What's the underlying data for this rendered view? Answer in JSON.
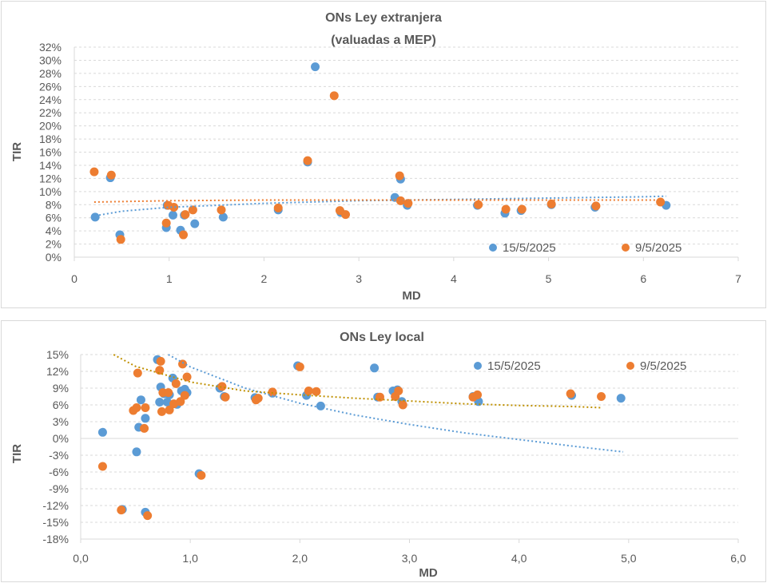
{
  "colors": {
    "series1": "#5b9bd5",
    "series2": "#ed7d31",
    "trend2_chart2": "#bf9000",
    "grid": "#d9d9d9",
    "text": "#595959"
  },
  "chart_data": [
    {
      "type": "scatter",
      "title": "ONs Ley extranjera",
      "subtitle": "(valuadas a MEP)",
      "xlabel": "MD",
      "ylabel": "TIR",
      "xlim": [
        0,
        7
      ],
      "ylim": [
        0,
        0.32
      ],
      "x_ticks": [
        0,
        1,
        2,
        3,
        4,
        5,
        6,
        7
      ],
      "x_tick_labels": [
        "0",
        "1",
        "2",
        "3",
        "4",
        "5",
        "6",
        "7"
      ],
      "y_ticks": [
        0,
        0.02,
        0.04,
        0.06,
        0.08,
        0.1,
        0.12,
        0.14,
        0.16,
        0.18,
        0.2,
        0.22,
        0.24,
        0.26,
        0.28,
        0.3,
        0.32
      ],
      "y_tick_labels": [
        "0%",
        "2%",
        "4%",
        "6%",
        "8%",
        "10%",
        "12%",
        "14%",
        "16%",
        "18%",
        "20%",
        "22%",
        "24%",
        "26%",
        "28%",
        "30%",
        "32%"
      ],
      "grid": "horizontal",
      "legend_placement": "bottom-right",
      "series": [
        {
          "name": "15/5/2025",
          "points": [
            [
              0.22,
              0.061
            ],
            [
              0.38,
              0.121
            ],
            [
              0.48,
              0.034
            ],
            [
              0.97,
              0.045
            ],
            [
              0.98,
              0.079
            ],
            [
              1.04,
              0.064
            ],
            [
              1.12,
              0.041
            ],
            [
              1.16,
              0.064
            ],
            [
              1.27,
              0.051
            ],
            [
              1.57,
              0.061
            ],
            [
              2.15,
              0.072
            ],
            [
              2.46,
              0.145
            ],
            [
              2.54,
              0.29
            ],
            [
              2.81,
              0.068
            ],
            [
              3.38,
              0.091
            ],
            [
              3.44,
              0.119
            ],
            [
              3.51,
              0.079
            ],
            [
              4.25,
              0.079
            ],
            [
              4.54,
              0.067
            ],
            [
              4.71,
              0.071
            ],
            [
              5.03,
              0.08
            ],
            [
              5.49,
              0.076
            ],
            [
              6.24,
              0.079
            ]
          ],
          "trendline": {
            "kind": "logarithmic",
            "points": [
              [
                0.22,
                0.063
              ],
              [
                0.5,
                0.07
              ],
              [
                1.0,
                0.076
              ],
              [
                1.5,
                0.079
              ],
              [
                2.0,
                0.082
              ],
              [
                3.0,
                0.086
              ],
              [
                4.0,
                0.088
              ],
              [
                5.0,
                0.09
              ],
              [
                6.0,
                0.092
              ],
              [
                6.24,
                0.093
              ]
            ]
          }
        },
        {
          "name": "9/5/2025",
          "points": [
            [
              0.21,
              0.13
            ],
            [
              0.39,
              0.125
            ],
            [
              0.49,
              0.027
            ],
            [
              0.97,
              0.052
            ],
            [
              0.99,
              0.079
            ],
            [
              1.05,
              0.076
            ],
            [
              1.15,
              0.034
            ],
            [
              1.17,
              0.065
            ],
            [
              1.25,
              0.072
            ],
            [
              1.55,
              0.072
            ],
            [
              2.15,
              0.075
            ],
            [
              2.46,
              0.147
            ],
            [
              2.74,
              0.246
            ],
            [
              2.8,
              0.071
            ],
            [
              2.86,
              0.065
            ],
            [
              3.43,
              0.124
            ],
            [
              3.44,
              0.086
            ],
            [
              3.52,
              0.082
            ],
            [
              4.26,
              0.08
            ],
            [
              4.55,
              0.073
            ],
            [
              4.72,
              0.073
            ],
            [
              5.03,
              0.081
            ],
            [
              5.5,
              0.078
            ],
            [
              6.18,
              0.084
            ]
          ],
          "trendline": {
            "kind": "logarithmic",
            "points": [
              [
                0.21,
                0.084
              ],
              [
                1.0,
                0.086
              ],
              [
                2.0,
                0.087
              ],
              [
                3.0,
                0.087
              ],
              [
                4.0,
                0.087
              ],
              [
                5.0,
                0.087
              ],
              [
                6.18,
                0.087
              ]
            ]
          }
        }
      ]
    },
    {
      "type": "scatter",
      "title": "ONs Ley local",
      "xlabel": "MD",
      "ylabel": "TIR",
      "xlim": [
        0,
        6
      ],
      "ylim": [
        -0.18,
        0.15
      ],
      "x_ticks": [
        0,
        1,
        2,
        3,
        4,
        5,
        6
      ],
      "x_tick_labels": [
        "0,0",
        "1,0",
        "2,0",
        "3,0",
        "4,0",
        "5,0",
        "6,0"
      ],
      "y_ticks": [
        -0.18,
        -0.15,
        -0.12,
        -0.09,
        -0.06,
        -0.03,
        0,
        0.03,
        0.06,
        0.09,
        0.12,
        0.15
      ],
      "y_tick_labels": [
        "-18%",
        "-15%",
        "-12%",
        "-9%",
        "-6%",
        "-3%",
        "0%",
        "3%",
        "6%",
        "9%",
        "12%",
        "15%"
      ],
      "grid": "horizontal",
      "legend_placement": "top-right",
      "series": [
        {
          "name": "15/5/2025",
          "points": [
            [
              0.2,
              0.011
            ],
            [
              0.38,
              -0.127
            ],
            [
              0.51,
              -0.024
            ],
            [
              0.53,
              0.02
            ],
            [
              0.55,
              0.069
            ],
            [
              0.59,
              0.036
            ],
            [
              0.59,
              -0.132
            ],
            [
              0.7,
              0.141
            ],
            [
              0.72,
              0.065
            ],
            [
              0.73,
              0.092
            ],
            [
              0.76,
              0.08
            ],
            [
              0.79,
              0.065
            ],
            [
              0.81,
              0.078
            ],
            [
              0.84,
              0.108
            ],
            [
              0.88,
              0.061
            ],
            [
              0.92,
              0.085
            ],
            [
              0.95,
              0.088
            ],
            [
              0.97,
              0.082
            ],
            [
              1.08,
              -0.063
            ],
            [
              1.27,
              0.09
            ],
            [
              1.31,
              0.075
            ],
            [
              1.59,
              0.073
            ],
            [
              1.75,
              0.081
            ],
            [
              1.98,
              0.13
            ],
            [
              2.06,
              0.077
            ],
            [
              2.19,
              0.058
            ],
            [
              2.68,
              0.126
            ],
            [
              2.71,
              0.074
            ],
            [
              2.85,
              0.085
            ],
            [
              2.89,
              0.087
            ],
            [
              2.93,
              0.066
            ],
            [
              3.58,
              0.075
            ],
            [
              3.63,
              0.066
            ],
            [
              4.48,
              0.077
            ],
            [
              4.93,
              0.072
            ]
          ],
          "trendline": {
            "kind": "logarithmic",
            "points": [
              [
                0.8,
                0.15
              ],
              [
                1.0,
                0.128
              ],
              [
                1.5,
                0.09
              ],
              [
                2.0,
                0.063
              ],
              [
                2.5,
                0.042
              ],
              [
                3.0,
                0.025
              ],
              [
                3.5,
                0.01
              ],
              [
                4.0,
                -0.002
              ],
              [
                4.5,
                -0.014
              ],
              [
                4.95,
                -0.024
              ]
            ]
          }
        },
        {
          "name": "9/5/2025",
          "points": [
            [
              0.2,
              -0.05
            ],
            [
              0.37,
              -0.128
            ],
            [
              0.48,
              0.05
            ],
            [
              0.51,
              0.055
            ],
            [
              0.52,
              0.117
            ],
            [
              0.58,
              0.018
            ],
            [
              0.59,
              0.055
            ],
            [
              0.61,
              -0.138
            ],
            [
              0.72,
              0.122
            ],
            [
              0.73,
              0.138
            ],
            [
              0.74,
              0.048
            ],
            [
              0.75,
              0.082
            ],
            [
              0.8,
              0.082
            ],
            [
              0.81,
              0.051
            ],
            [
              0.85,
              0.062
            ],
            [
              0.87,
              0.098
            ],
            [
              0.91,
              0.066
            ],
            [
              0.93,
              0.133
            ],
            [
              0.95,
              0.077
            ],
            [
              0.97,
              0.11
            ],
            [
              1.1,
              -0.066
            ],
            [
              1.29,
              0.093
            ],
            [
              1.32,
              0.074
            ],
            [
              1.6,
              0.069
            ],
            [
              1.62,
              0.072
            ],
            [
              1.75,
              0.083
            ],
            [
              2.0,
              0.128
            ],
            [
              2.08,
              0.085
            ],
            [
              2.15,
              0.084
            ],
            [
              2.73,
              0.074
            ],
            [
              2.87,
              0.075
            ],
            [
              2.9,
              0.085
            ],
            [
              2.94,
              0.06
            ],
            [
              3.58,
              0.074
            ],
            [
              3.62,
              0.078
            ],
            [
              4.47,
              0.08
            ],
            [
              4.75,
              0.075
            ]
          ],
          "trendline": {
            "kind": "logarithmic",
            "points": [
              [
                0.3,
                0.15
              ],
              [
                0.5,
                0.129
              ],
              [
                1.0,
                0.101
              ],
              [
                1.5,
                0.085
              ],
              [
                2.0,
                0.078
              ],
              [
                2.5,
                0.072
              ],
              [
                3.0,
                0.067
              ],
              [
                3.5,
                0.062
              ],
              [
                4.0,
                0.059
              ],
              [
                4.5,
                0.057
              ],
              [
                4.75,
                0.055
              ]
            ]
          }
        }
      ]
    }
  ]
}
